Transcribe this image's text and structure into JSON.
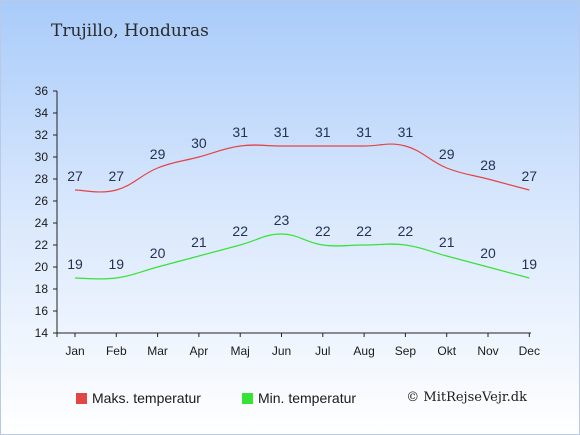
{
  "title": "Trujillo, Honduras",
  "chart_data": {
    "type": "line",
    "categories": [
      "Jan",
      "Feb",
      "Mar",
      "Apr",
      "Maj",
      "Jun",
      "Jul",
      "Aug",
      "Sep",
      "Okt",
      "Nov",
      "Dec"
    ],
    "series": [
      {
        "name": "Maks. temperatur",
        "color": "#e34444",
        "values": [
          27,
          27,
          29,
          30,
          31,
          31,
          31,
          31,
          31,
          29,
          28,
          27
        ]
      },
      {
        "name": "Min. temperatur",
        "color": "#36e236",
        "values": [
          19,
          19,
          20,
          21,
          22,
          23,
          22,
          22,
          22,
          21,
          20,
          19
        ]
      }
    ],
    "ylim": [
      14,
      36
    ],
    "yticks": [
      14,
      16,
      18,
      20,
      22,
      24,
      26,
      28,
      30,
      32,
      34,
      36
    ],
    "grid": false,
    "legend_position": "bottom"
  },
  "legend": {
    "max_label": "Maks. temperatur",
    "min_label": "Min. temperatur"
  },
  "credit": "© MitRejseVejr.dk"
}
